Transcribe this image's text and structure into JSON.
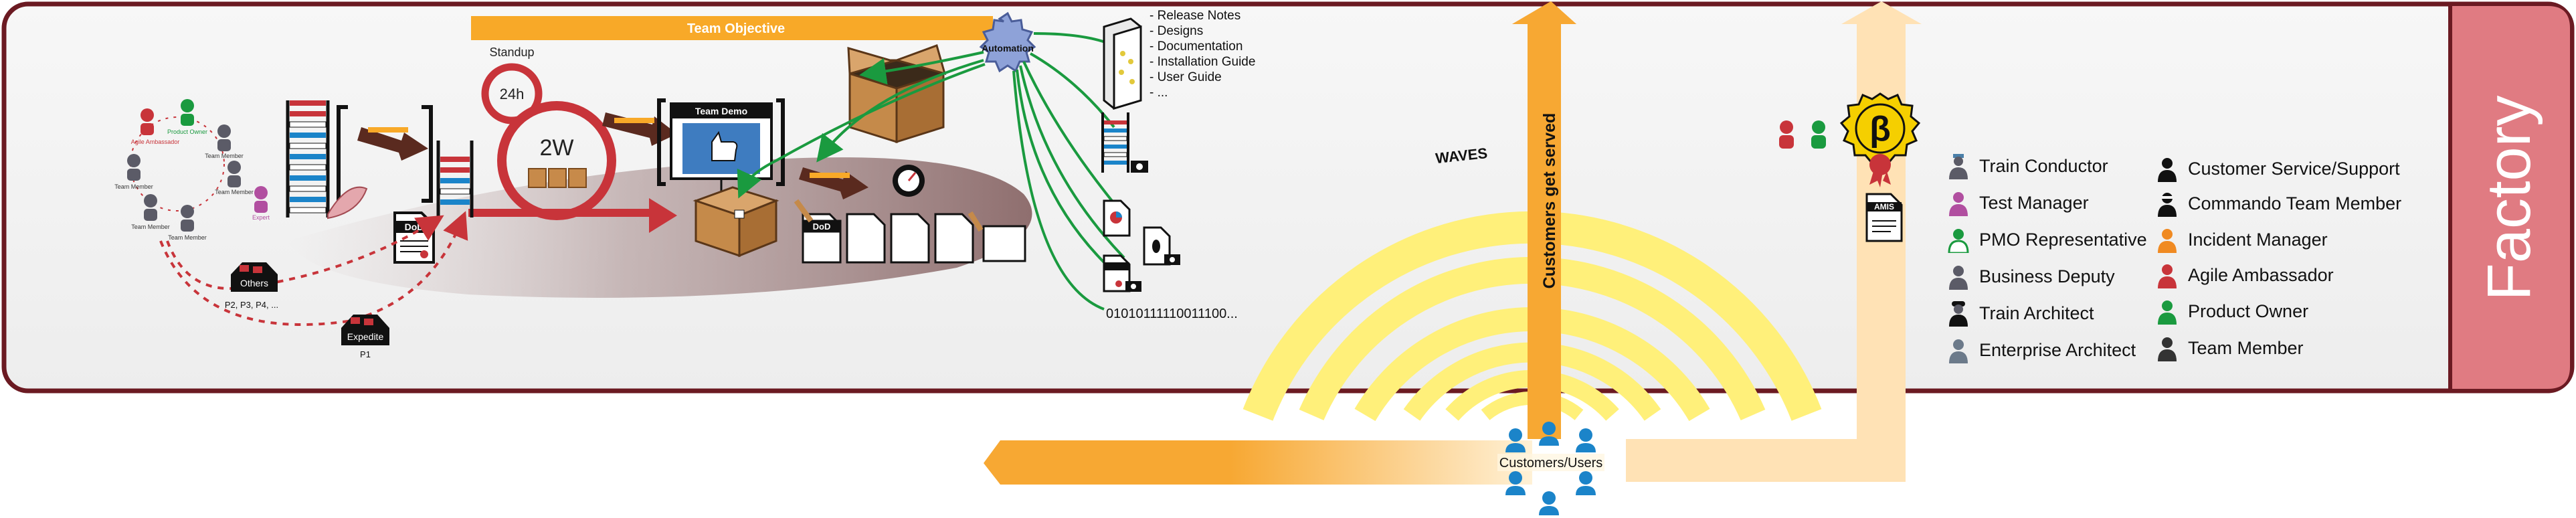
{
  "factory": {
    "label": "Factory"
  },
  "top": {
    "team_objective": "Team Objective",
    "automation": "Automation"
  },
  "loops": {
    "standup": "Standup",
    "day": "24h",
    "sprint": "2W"
  },
  "team_demo": {
    "label": "Team Demo"
  },
  "dod": {
    "label": "DoD"
  },
  "queues": {
    "others_label": "Others",
    "others_priorities": "P2, P3, P4, ...",
    "expedite_label": "Expedite",
    "expedite_priority": "P1"
  },
  "roles_circle": {
    "agile_ambassador": "Agile Ambassador",
    "product_owner": "Product Owner",
    "team_member": "Team Member",
    "expert": "Expert"
  },
  "artifacts": {
    "items": [
      "- Release Notes",
      "- Designs",
      "- Documentation",
      "- Installation Guide",
      "- User Guide",
      "- ..."
    ]
  },
  "binary": {
    "text": "01010111110011100..."
  },
  "waves": {
    "label": "WAVES"
  },
  "customers": {
    "served": "Customers get served",
    "label": "Customers/Users"
  },
  "amis": {
    "label": "AMIS",
    "badge_letter": "β"
  },
  "legend": {
    "col1": [
      {
        "label": "Train Conductor",
        "icon": "train-conductor-icon"
      },
      {
        "label": "Test Manager",
        "icon": "test-manager-icon"
      },
      {
        "label": "PMO Representative",
        "icon": "pmo-representative-icon"
      },
      {
        "label": "Business Deputy",
        "icon": "business-deputy-icon"
      },
      {
        "label": "Train Architect",
        "icon": "train-architect-icon"
      },
      {
        "label": "Enterprise Architect",
        "icon": "enterprise-architect-icon"
      }
    ],
    "col2": [
      {
        "label": "Customer Service/Support",
        "icon": "customer-service-icon"
      },
      {
        "label": "Commando Team Member",
        "icon": "commando-team-member-icon"
      },
      {
        "label": "Incident Manager",
        "icon": "incident-manager-icon"
      },
      {
        "label": "Agile Ambassador",
        "icon": "agile-ambassador-icon"
      },
      {
        "label": "Product Owner",
        "icon": "product-owner-icon"
      },
      {
        "label": "Team Member",
        "icon": "team-member-icon"
      }
    ]
  },
  "colors": {
    "frame": "#6b1a22",
    "factory_band": "#e07b82",
    "objective": "#f8a928",
    "arrow_orange": "#f7a833",
    "arrow_cream": "#ffe2b5",
    "wave_yellow": "#fff07a",
    "flow_red": "#c8343a",
    "box_brown": "#b97c3f",
    "automation_blue": "#8ea2d8",
    "line_green": "#1a9a3f",
    "customer_blue": "#1b84c9"
  }
}
